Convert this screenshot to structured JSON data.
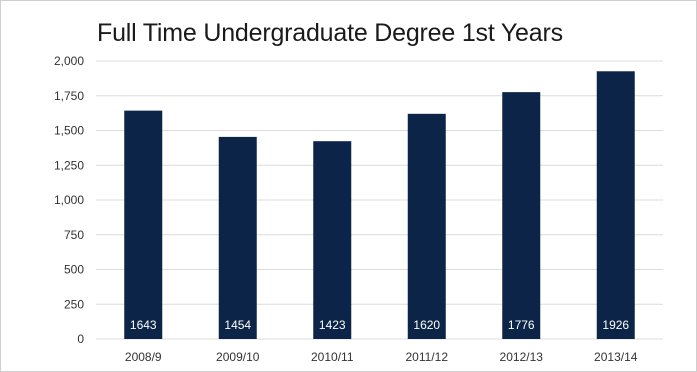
{
  "chart_data": {
    "type": "bar",
    "title": "Full Time Undergraduate Degree 1st Years",
    "xlabel": "",
    "ylabel": "",
    "categories": [
      "2008/9",
      "2009/10",
      "2010/11",
      "2011/12",
      "2012/13",
      "2013/14"
    ],
    "values": [
      1643,
      1454,
      1423,
      1620,
      1776,
      1926
    ],
    "data_labels": [
      "1643",
      "1454",
      "1423",
      "1620",
      "1776",
      "1926"
    ],
    "ylim": [
      0,
      2000
    ],
    "yticks": [
      0,
      250,
      500,
      750,
      1000,
      1250,
      1500,
      1750,
      2000
    ],
    "ytick_labels": [
      "0",
      "250",
      "500",
      "750",
      "1,000",
      "1,250",
      "1,500",
      "1,750",
      "2,000"
    ],
    "grid": true,
    "legend": "none",
    "colors": {
      "bar": "#0b2447",
      "grid": "#dcdcdc",
      "bar_label": "#ffffff"
    }
  }
}
